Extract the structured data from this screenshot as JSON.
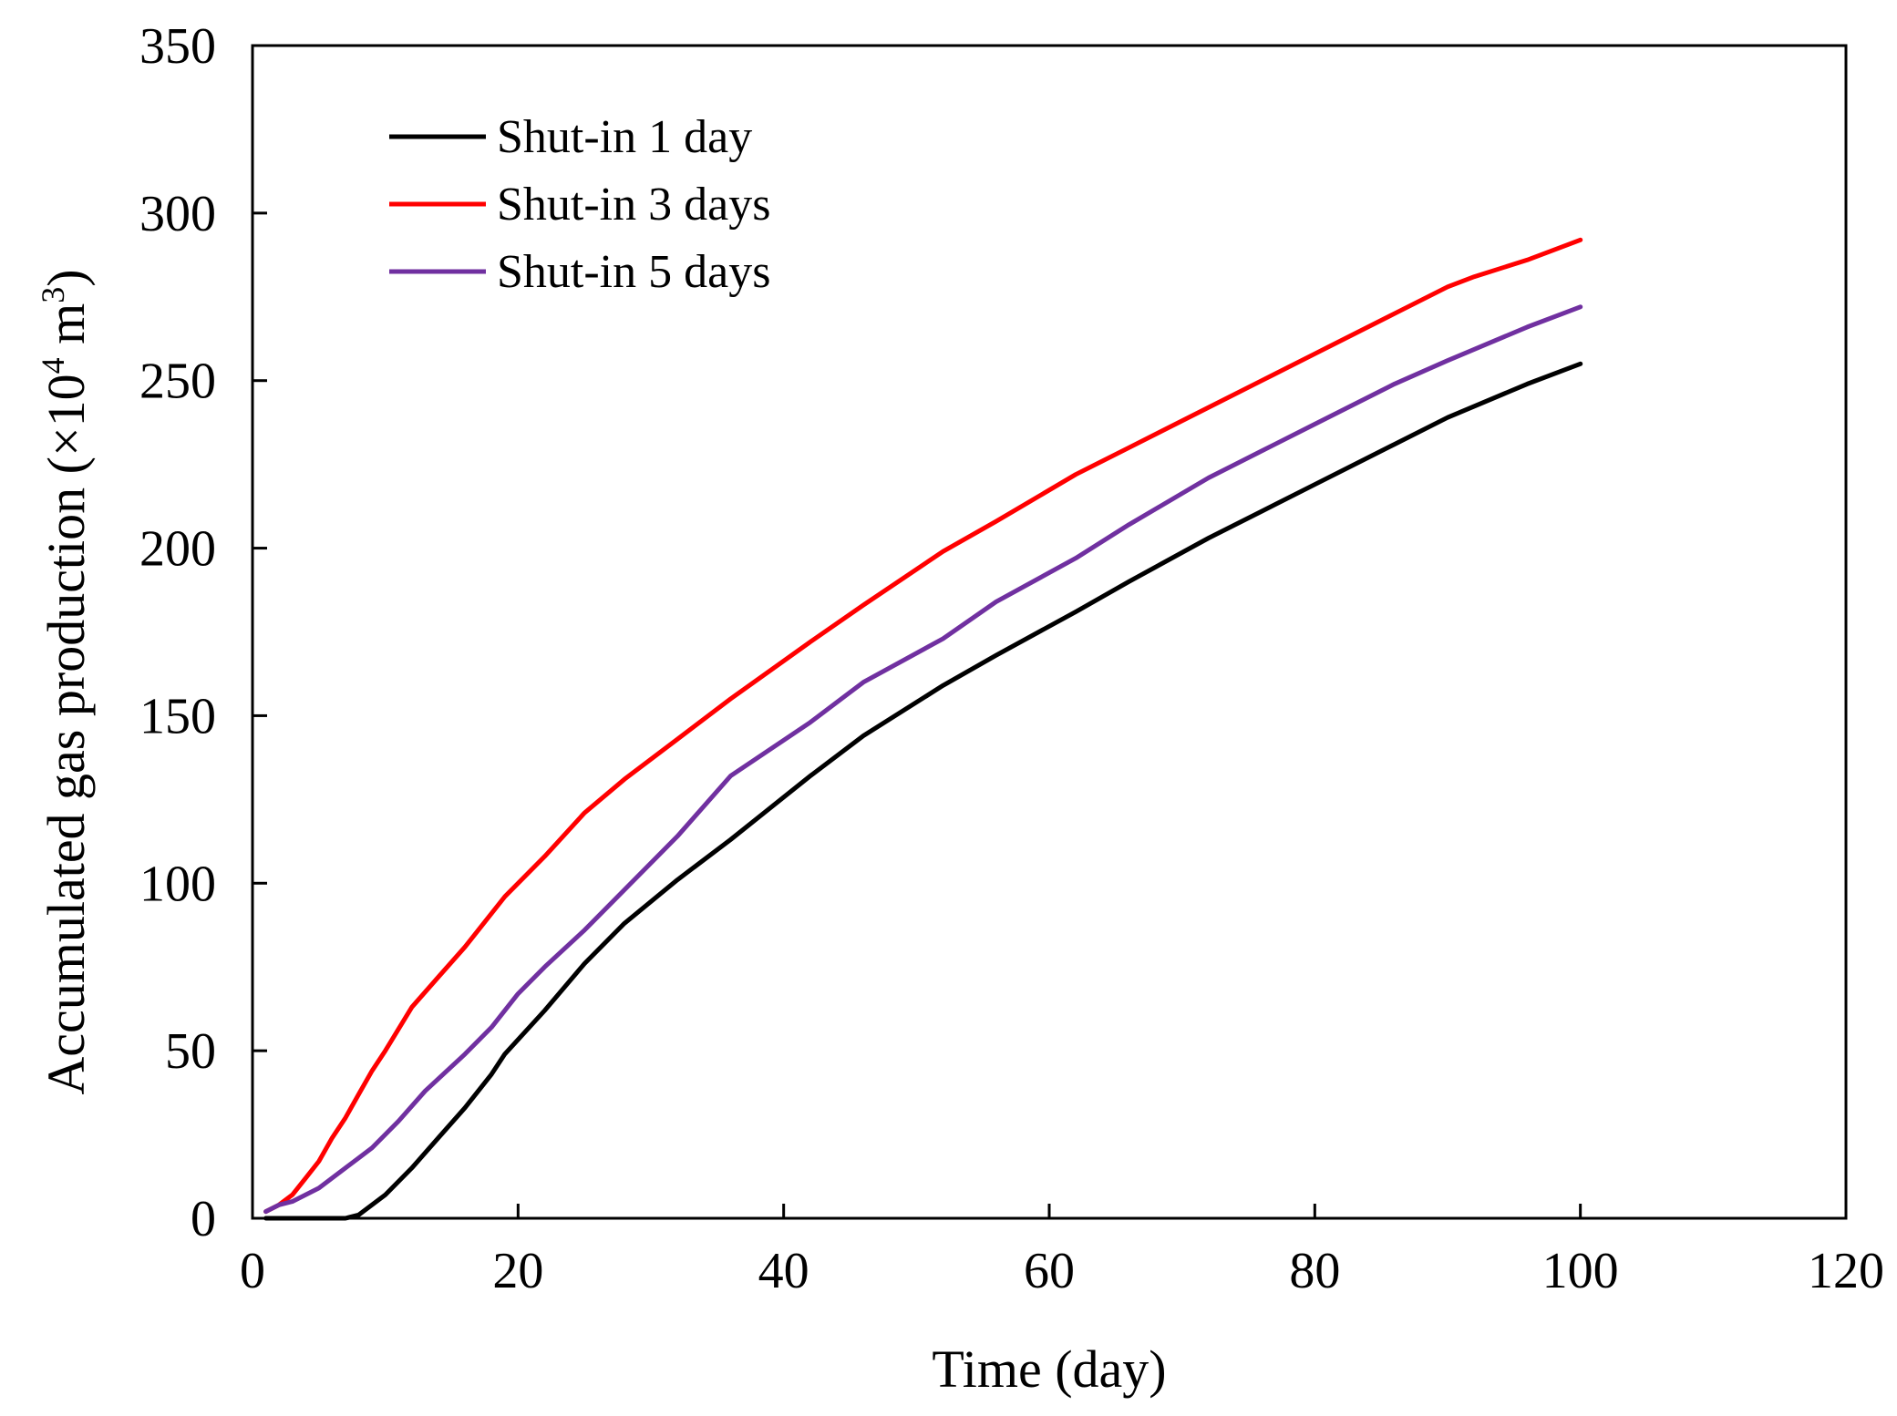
{
  "chart_data": {
    "type": "line",
    "xlabel": "Time (day)",
    "ylabel": {
      "main": "Accumulated gas production (×10",
      "exponent": "4",
      "unit": " m",
      "unit_exponent": "3",
      "close": ")"
    },
    "xlim": [
      0,
      120
    ],
    "ylim": [
      0,
      350
    ],
    "xticks": [
      "0",
      "20",
      "40",
      "60",
      "80",
      "100",
      "120"
    ],
    "yticks": [
      "0",
      "50",
      "100",
      "150",
      "200",
      "250",
      "300",
      "350"
    ],
    "grid": false,
    "legend_position": "top-left",
    "series": [
      {
        "name": "Shut-in 1 day",
        "color": "#000000",
        "points": [
          [
            1,
            0
          ],
          [
            2,
            0
          ],
          [
            3,
            0
          ],
          [
            4,
            0
          ],
          [
            5,
            0
          ],
          [
            6,
            0
          ],
          [
            7,
            0
          ],
          [
            8,
            1
          ],
          [
            10,
            7
          ],
          [
            12,
            15
          ],
          [
            14,
            24
          ],
          [
            16,
            33
          ],
          [
            18,
            43
          ],
          [
            19,
            49
          ],
          [
            22,
            62
          ],
          [
            25,
            76
          ],
          [
            28,
            88
          ],
          [
            32,
            101
          ],
          [
            36,
            113
          ],
          [
            42,
            132
          ],
          [
            46,
            144
          ],
          [
            52,
            159
          ],
          [
            56,
            168
          ],
          [
            62,
            181
          ],
          [
            66,
            190
          ],
          [
            72,
            203
          ],
          [
            76,
            211
          ],
          [
            80,
            219
          ],
          [
            86,
            231
          ],
          [
            90,
            239
          ],
          [
            96,
            249
          ],
          [
            100,
            255
          ]
        ]
      },
      {
        "name": "Shut-in 3 days",
        "color": "#ff0000",
        "points": [
          [
            1,
            2
          ],
          [
            2,
            4
          ],
          [
            3,
            7
          ],
          [
            4,
            12
          ],
          [
            5,
            17
          ],
          [
            6,
            24
          ],
          [
            7,
            30
          ],
          [
            8,
            37
          ],
          [
            9,
            44
          ],
          [
            10,
            50
          ],
          [
            12,
            63
          ],
          [
            14,
            72
          ],
          [
            16,
            81
          ],
          [
            19,
            96
          ],
          [
            22,
            108
          ],
          [
            25,
            121
          ],
          [
            28,
            131
          ],
          [
            32,
            143
          ],
          [
            36,
            155
          ],
          [
            42,
            172
          ],
          [
            46,
            183
          ],
          [
            52,
            199
          ],
          [
            56,
            208
          ],
          [
            62,
            222
          ],
          [
            66,
            230
          ],
          [
            72,
            242
          ],
          [
            76,
            250
          ],
          [
            80,
            258
          ],
          [
            86,
            270
          ],
          [
            90,
            278
          ],
          [
            92,
            281
          ],
          [
            96,
            286
          ],
          [
            100,
            292
          ]
        ]
      },
      {
        "name": "Shut-in 5 days",
        "color": "#7030a0",
        "points": [
          [
            1,
            2
          ],
          [
            2,
            4
          ],
          [
            3,
            5
          ],
          [
            5,
            9
          ],
          [
            7,
            15
          ],
          [
            9,
            21
          ],
          [
            11,
            29
          ],
          [
            13,
            38
          ],
          [
            16,
            49
          ],
          [
            18,
            57
          ],
          [
            20,
            67
          ],
          [
            22,
            75
          ],
          [
            25,
            86
          ],
          [
            28,
            98
          ],
          [
            32,
            114
          ],
          [
            36,
            132
          ],
          [
            42,
            148
          ],
          [
            46,
            160
          ],
          [
            52,
            173
          ],
          [
            56,
            184
          ],
          [
            62,
            197
          ],
          [
            66,
            207
          ],
          [
            72,
            221
          ],
          [
            76,
            229
          ],
          [
            80,
            237
          ],
          [
            86,
            249
          ],
          [
            90,
            256
          ],
          [
            96,
            266
          ],
          [
            100,
            272
          ]
        ]
      }
    ]
  }
}
